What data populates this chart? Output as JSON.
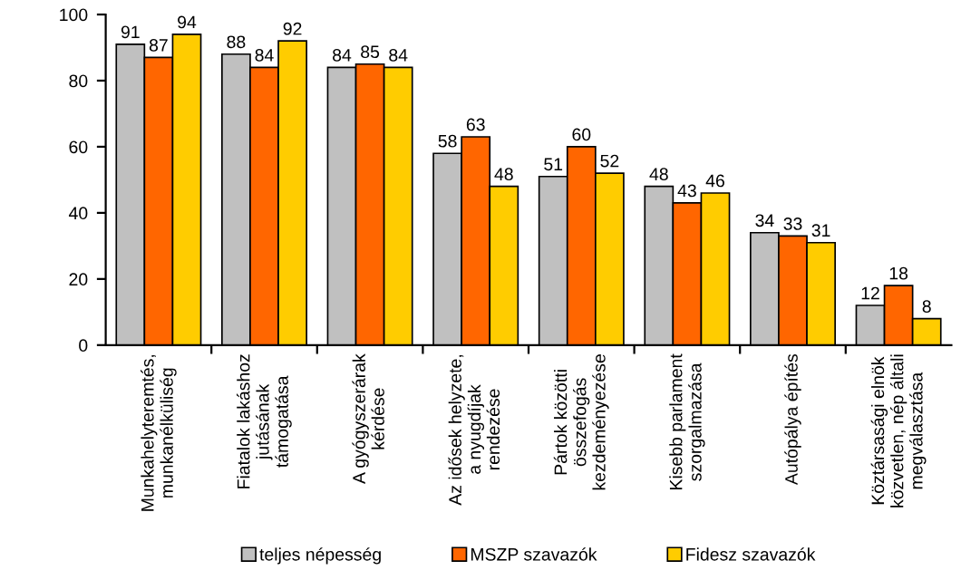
{
  "chart_data": {
    "type": "bar",
    "categories": [
      "Munkahelyteremtés,\nmunkanélküliség",
      "Fiatalok lakáshoz\njutásának\ntámogatása",
      "A gyógyszerárak\nkérdése",
      "Az idősek helyzete,\na nyugdíjak\nrendezése",
      "Pártok közötti\nösszefogás\nkezdeményezése",
      "Kisebb parlament\nszorgalmazása",
      "Autópálya építés",
      "Köztársasági elnök\nközvetlen, nép általi\nmegválasztása"
    ],
    "series": [
      {
        "name": "teljes népesség",
        "color": "#c0c0c0",
        "values": [
          91,
          88,
          84,
          58,
          51,
          48,
          34,
          12
        ]
      },
      {
        "name": "MSZP szavazók",
        "color": "#ff6600",
        "values": [
          87,
          84,
          85,
          63,
          60,
          43,
          33,
          18
        ]
      },
      {
        "name": "Fidesz szavazók",
        "color": "#ffcc00",
        "values": [
          94,
          92,
          84,
          48,
          52,
          46,
          31,
          8
        ]
      }
    ],
    "ylim": [
      0,
      100
    ],
    "yticks": [
      0,
      20,
      40,
      60,
      80,
      100
    ],
    "data_labels": true,
    "grid": false,
    "legend": "bottom"
  }
}
